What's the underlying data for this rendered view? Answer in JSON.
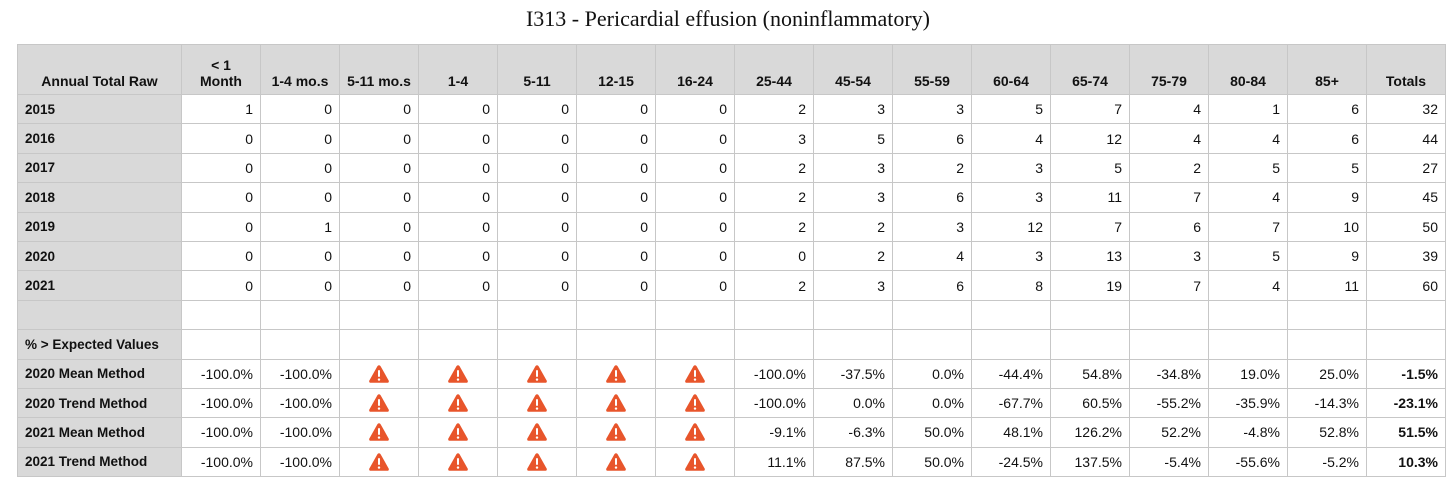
{
  "title": "I313 - Pericardial effusion (noninflammatory)",
  "colors": {
    "header_bg": "#d9d9d9",
    "grid_line": "#c7c7c7",
    "warning": "#e8552b"
  },
  "header": {
    "row_label": "Annual Total Raw",
    "columns": [
      "< 1 Month",
      "1-4 mo.s",
      "5-11 mo.s",
      "1-4",
      "5-11",
      "12-15",
      "16-24",
      "25-44",
      "45-54",
      "55-59",
      "60-64",
      "65-74",
      "75-79",
      "80-84",
      "85+",
      "Totals"
    ]
  },
  "raw_rows": [
    {
      "label": "2015",
      "values": [
        "1",
        "0",
        "0",
        "0",
        "0",
        "0",
        "0",
        "2",
        "3",
        "3",
        "5",
        "7",
        "4",
        "1",
        "6",
        "32"
      ]
    },
    {
      "label": "2016",
      "values": [
        "0",
        "0",
        "0",
        "0",
        "0",
        "0",
        "0",
        "3",
        "5",
        "6",
        "4",
        "12",
        "4",
        "4",
        "6",
        "44"
      ]
    },
    {
      "label": "2017",
      "values": [
        "0",
        "0",
        "0",
        "0",
        "0",
        "0",
        "0",
        "2",
        "3",
        "2",
        "3",
        "5",
        "2",
        "5",
        "5",
        "27"
      ]
    },
    {
      "label": "2018",
      "values": [
        "0",
        "0",
        "0",
        "0",
        "0",
        "0",
        "0",
        "2",
        "3",
        "6",
        "3",
        "11",
        "7",
        "4",
        "9",
        "45"
      ]
    },
    {
      "label": "2019",
      "values": [
        "0",
        "1",
        "0",
        "0",
        "0",
        "0",
        "0",
        "2",
        "2",
        "3",
        "12",
        "7",
        "6",
        "7",
        "10",
        "50"
      ]
    },
    {
      "label": "2020",
      "values": [
        "0",
        "0",
        "0",
        "0",
        "0",
        "0",
        "0",
        "0",
        "2",
        "4",
        "3",
        "13",
        "3",
        "5",
        "9",
        "39"
      ]
    },
    {
      "label": "2021",
      "values": [
        "0",
        "0",
        "0",
        "0",
        "0",
        "0",
        "0",
        "2",
        "3",
        "6",
        "8",
        "19",
        "7",
        "4",
        "11",
        "60"
      ]
    }
  ],
  "section_label": "% > Expected Values",
  "pct_rows": [
    {
      "label": "2020 Mean Method",
      "values": [
        "-100.0%",
        "-100.0%",
        "warning-icon",
        "warning-icon",
        "warning-icon",
        "warning-icon",
        "warning-icon",
        "-100.0%",
        "-37.5%",
        "0.0%",
        "-44.4%",
        "54.8%",
        "-34.8%",
        "19.0%",
        "25.0%",
        "-1.5%"
      ]
    },
    {
      "label": "2020 Trend Method",
      "values": [
        "-100.0%",
        "-100.0%",
        "warning-icon",
        "warning-icon",
        "warning-icon",
        "warning-icon",
        "warning-icon",
        "-100.0%",
        "0.0%",
        "0.0%",
        "-67.7%",
        "60.5%",
        "-55.2%",
        "-35.9%",
        "-14.3%",
        "-23.1%"
      ]
    },
    {
      "label": "2021 Mean Method",
      "values": [
        "-100.0%",
        "-100.0%",
        "warning-icon",
        "warning-icon",
        "warning-icon",
        "warning-icon",
        "warning-icon",
        "-9.1%",
        "-6.3%",
        "50.0%",
        "48.1%",
        "126.2%",
        "52.2%",
        "-4.8%",
        "52.8%",
        "51.5%"
      ]
    },
    {
      "label": "2021 Trend Method",
      "values": [
        "-100.0%",
        "-100.0%",
        "warning-icon",
        "warning-icon",
        "warning-icon",
        "warning-icon",
        "warning-icon",
        "11.1%",
        "87.5%",
        "50.0%",
        "-24.5%",
        "137.5%",
        "-5.4%",
        "-55.6%",
        "-5.2%",
        "10.3%"
      ]
    }
  ]
}
